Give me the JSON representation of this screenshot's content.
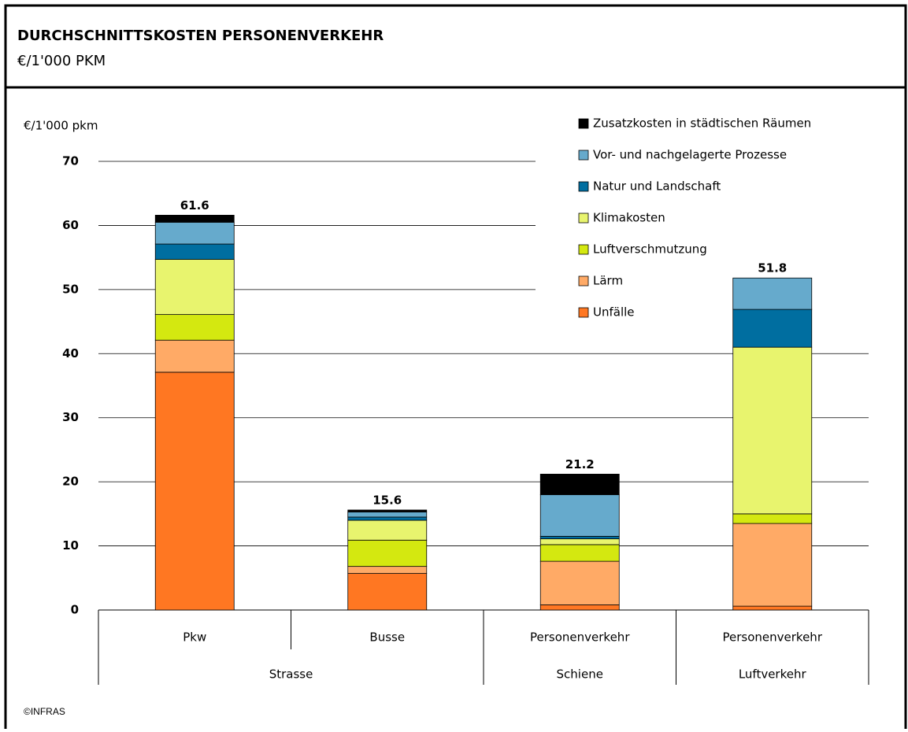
{
  "chart_data": {
    "type": "stacked_bar",
    "title": "DURCHSCHNITTSKOSTEN PERSONENVERKEHR",
    "subtitle": "€/1'000 PKM",
    "y_label": "€/1'000 pkm",
    "source": "©INFRAS",
    "categories": [
      "Pkw",
      "Busse",
      "Personenverkehr",
      "Personenverkehr"
    ],
    "groups": [
      {
        "label": "Strasse",
        "span": 2
      },
      {
        "label": "Schiene",
        "span": 1
      },
      {
        "label": "Luftverkehr",
        "span": 1
      }
    ],
    "series": [
      {
        "name": "Unfälle",
        "color": "#ff7722",
        "values": [
          37.1,
          5.7,
          0.8,
          0.6
        ]
      },
      {
        "name": "Lärm",
        "color": "#ffaa66",
        "values": [
          5.0,
          1.1,
          6.8,
          12.9
        ]
      },
      {
        "name": "Luftverschmutzung",
        "color": "#d4e810",
        "values": [
          4.0,
          4.1,
          2.6,
          1.5
        ]
      },
      {
        "name": "Klimakosten",
        "color": "#e8f46e",
        "values": [
          8.6,
          3.1,
          0.9,
          26.0
        ]
      },
      {
        "name": "Natur und Landschaft",
        "color": "#006ea0",
        "values": [
          2.4,
          0.5,
          0.4,
          5.9
        ]
      },
      {
        "name": "Vor- und nachgelagerte Prozesse",
        "color": "#66aacc",
        "values": [
          3.4,
          0.8,
          6.5,
          4.9
        ]
      },
      {
        "name": "Zusatzkosten in städtischen Räumen",
        "color": "#000000",
        "values": [
          1.1,
          0.3,
          3.2,
          0
        ]
      }
    ],
    "totals": [
      61.6,
      15.6,
      21.2,
      51.8
    ],
    "ylim": [
      0,
      70
    ],
    "yticks": [
      0,
      10,
      20,
      30,
      40,
      50,
      60,
      70
    ],
    "grid": true,
    "legend": "top-right"
  }
}
